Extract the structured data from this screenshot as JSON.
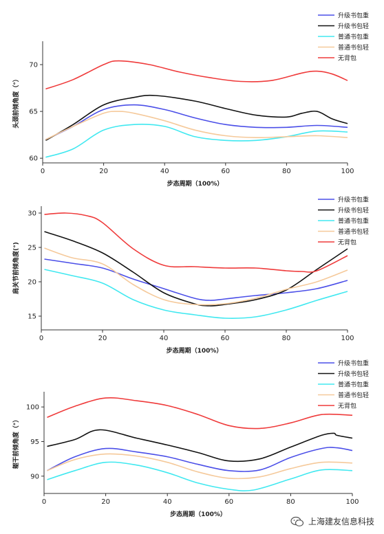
{
  "watermark": {
    "text": "上海建友信息科技"
  },
  "chart_data": [
    {
      "type": "line",
      "ylabel": "头颈前倾角度（°）",
      "xlabel": "步态周期（100%）",
      "xlim": [
        0,
        100
      ],
      "ylim": [
        59.5,
        72.5
      ],
      "xticks": [
        "0",
        "20",
        "40",
        "60",
        "80",
        "100"
      ],
      "yticks": [
        "60",
        "65",
        "70"
      ],
      "ytick_values": [
        60,
        65,
        70
      ],
      "legend_position": "top-right",
      "series": [
        {
          "name": "升级书包重",
          "color": "#4a4ee8",
          "x": [
            1,
            10,
            20,
            30,
            40,
            50,
            60,
            70,
            80,
            90,
            100
          ],
          "y": [
            62.0,
            63.4,
            65.2,
            65.7,
            65.2,
            64.3,
            63.6,
            63.3,
            63.3,
            63.5,
            63.3
          ]
        },
        {
          "name": "升级书包轻",
          "color": "#111111",
          "x": [
            1,
            10,
            20,
            30,
            37,
            50,
            60,
            70,
            80,
            85,
            90,
            95,
            100
          ],
          "y": [
            61.9,
            63.6,
            65.7,
            66.5,
            66.7,
            66.1,
            65.3,
            64.6,
            64.4,
            64.8,
            65.0,
            64.2,
            63.7
          ]
        },
        {
          "name": "普通书包重",
          "color": "#40e8f0",
          "x": [
            1,
            10,
            20,
            30,
            40,
            50,
            60,
            70,
            80,
            90,
            100
          ],
          "y": [
            60.1,
            61.0,
            63.0,
            63.6,
            63.4,
            62.3,
            61.9,
            61.9,
            62.3,
            62.9,
            62.8
          ]
        },
        {
          "name": "普通书包轻",
          "color": "#f5c99a",
          "x": [
            1,
            10,
            20,
            25,
            30,
            40,
            50,
            60,
            70,
            80,
            90,
            100
          ],
          "y": [
            62.0,
            63.4,
            64.8,
            65.0,
            64.8,
            64.0,
            63.0,
            62.4,
            62.2,
            62.3,
            62.4,
            62.2
          ]
        },
        {
          "name": "无背包",
          "color": "#ef3a3a",
          "x": [
            1,
            10,
            20,
            25,
            35,
            45,
            55,
            65,
            75,
            85,
            90,
            95,
            100
          ],
          "y": [
            67.4,
            68.4,
            70.0,
            70.4,
            70.0,
            69.2,
            68.6,
            68.2,
            68.3,
            69.1,
            69.3,
            69.0,
            68.3
          ]
        }
      ]
    },
    {
      "type": "line",
      "ylabel": "肩关节前倾角度(°)",
      "xlabel": "步态周期（100%）",
      "xlim": [
        0,
        100
      ],
      "ylim": [
        13,
        31
      ],
      "xticks": [
        "0",
        "20",
        "40",
        "60",
        "80",
        "100"
      ],
      "yticks": [
        "15",
        "20",
        "25",
        "30"
      ],
      "ytick_values": [
        15,
        20,
        25,
        30
      ],
      "legend_position": "top-right",
      "series": [
        {
          "name": "升级书包重",
          "color": "#4a4ee8",
          "x": [
            1,
            10,
            20,
            30,
            40,
            50,
            55,
            60,
            70,
            80,
            90,
            100
          ],
          "y": [
            23.3,
            22.7,
            22.0,
            20.4,
            19.0,
            17.6,
            17.3,
            17.5,
            18.0,
            18.4,
            19.0,
            20.2
          ]
        },
        {
          "name": "升级书包轻",
          "color": "#111111",
          "x": [
            1,
            10,
            20,
            30,
            40,
            50,
            55,
            60,
            70,
            80,
            90,
            100
          ],
          "y": [
            27.3,
            26.0,
            24.2,
            21.4,
            18.4,
            16.8,
            16.5,
            16.7,
            17.4,
            18.8,
            21.8,
            24.8
          ]
        },
        {
          "name": "普通书包重",
          "color": "#40e8f0",
          "x": [
            1,
            10,
            20,
            30,
            40,
            50,
            60,
            70,
            80,
            90,
            100
          ],
          "y": [
            21.8,
            20.9,
            19.8,
            17.4,
            15.9,
            15.2,
            14.7,
            14.9,
            15.9,
            17.3,
            18.6
          ]
        },
        {
          "name": "普通书包轻",
          "color": "#f5c99a",
          "x": [
            1,
            10,
            20,
            30,
            40,
            50,
            60,
            70,
            80,
            90,
            100
          ],
          "y": [
            24.9,
            23.5,
            22.6,
            19.6,
            17.4,
            16.7,
            16.8,
            17.6,
            18.9,
            20.0,
            21.7
          ]
        },
        {
          "name": "无背包",
          "color": "#ef3a3a",
          "x": [
            1,
            8,
            15,
            20,
            30,
            40,
            50,
            60,
            70,
            80,
            85,
            90,
            100
          ],
          "y": [
            29.8,
            30.0,
            29.6,
            28.6,
            24.8,
            22.4,
            22.2,
            22.0,
            22.0,
            21.6,
            21.5,
            21.6,
            23.8
          ]
        }
      ]
    },
    {
      "type": "line",
      "ylabel": "躯干前倾角度（°）",
      "xlabel": "步态周期（100%）",
      "xlim": [
        0,
        100
      ],
      "ylim": [
        87.5,
        102.2
      ],
      "xticks": [
        "0",
        "20",
        "40",
        "60",
        "80",
        "100"
      ],
      "yticks": [
        "90",
        "95",
        "100"
      ],
      "ytick_values": [
        90,
        95,
        100
      ],
      "legend_position": "top-right",
      "series": [
        {
          "name": "升级书包重",
          "color": "#4a4ee8",
          "x": [
            1,
            10,
            20,
            30,
            40,
            50,
            60,
            70,
            80,
            90,
            95,
            100
          ],
          "y": [
            90.8,
            92.8,
            94.0,
            93.5,
            92.8,
            91.7,
            90.8,
            90.9,
            92.7,
            94.0,
            94.1,
            93.7
          ]
        },
        {
          "name": "升级书包轻",
          "color": "#111111",
          "x": [
            1,
            10,
            18,
            30,
            40,
            50,
            60,
            70,
            80,
            90,
            94,
            95,
            100
          ],
          "y": [
            94.3,
            95.3,
            96.7,
            95.5,
            94.5,
            93.4,
            92.2,
            92.5,
            94.2,
            95.9,
            96.2,
            95.9,
            95.5
          ]
        },
        {
          "name": "普通书包重",
          "color": "#40e8f0",
          "x": [
            1,
            10,
            20,
            30,
            40,
            50,
            60,
            68,
            80,
            90,
            100
          ],
          "y": [
            89.5,
            90.8,
            92.0,
            91.6,
            90.5,
            89.0,
            88.1,
            88.0,
            89.6,
            90.9,
            90.8
          ]
        },
        {
          "name": "普通书包轻",
          "color": "#f5c99a",
          "x": [
            1,
            10,
            20,
            30,
            40,
            50,
            60,
            70,
            80,
            90,
            100
          ],
          "y": [
            90.8,
            92.4,
            93.2,
            92.9,
            92.0,
            90.6,
            89.7,
            89.9,
            91.1,
            92.0,
            91.9
          ]
        },
        {
          "name": "无背包",
          "color": "#ef3a3a",
          "x": [
            1,
            10,
            20,
            30,
            40,
            50,
            60,
            70,
            80,
            90,
            100
          ],
          "y": [
            98.5,
            100.1,
            101.3,
            100.9,
            100.2,
            98.9,
            97.3,
            96.9,
            97.7,
            98.9,
            98.8
          ]
        }
      ]
    }
  ]
}
